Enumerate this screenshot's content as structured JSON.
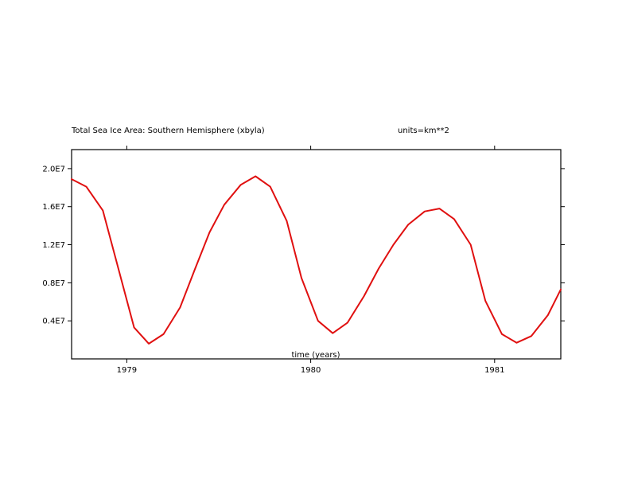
{
  "chart_data": {
    "type": "line",
    "title": "Total Sea Ice Area: Southern Hemisphere (xbyla)",
    "units_label": "units=km**2",
    "xlabel": "time (years)",
    "ylabel": "",
    "xlim": [
      1978.7,
      1981.36
    ],
    "ylim": [
      0.0,
      22000000.0
    ],
    "x_ticks": [
      1979,
      1980,
      1981
    ],
    "x_tick_labels": [
      "1979",
      "1980",
      "1981"
    ],
    "y_ticks": [
      4000000,
      8000000,
      12000000,
      16000000,
      20000000
    ],
    "y_tick_labels": [
      "0.4E7",
      "0.8E7",
      "1.2E7",
      "1.6E7",
      "2.0E7"
    ],
    "grid": false,
    "legend": "none",
    "series": [
      {
        "color": "#e01010",
        "x": [
          1978.7,
          1978.78,
          1978.87,
          1978.95,
          1979.04,
          1979.12,
          1979.2,
          1979.29,
          1979.37,
          1979.45,
          1979.53,
          1979.62,
          1979.7,
          1979.78,
          1979.87,
          1979.95,
          1980.04,
          1980.12,
          1980.2,
          1980.29,
          1980.37,
          1980.45,
          1980.53,
          1980.62,
          1980.7,
          1980.78,
          1980.87,
          1980.95,
          1981.04,
          1981.12,
          1981.2,
          1981.29,
          1981.36
        ],
        "values": [
          18900000,
          18100000,
          15600000,
          9800000,
          3300000,
          1600000,
          2600000,
          5400000,
          9400000,
          13300000,
          16200000,
          18300000,
          19200000,
          18100000,
          14500000,
          8500000,
          4000000,
          2700000,
          3800000,
          6600000,
          9500000,
          12000000,
          14100000,
          15500000,
          15800000,
          14700000,
          12000000,
          6100000,
          2600000,
          1700000,
          2400000,
          4600000,
          7300000
        ]
      }
    ]
  }
}
